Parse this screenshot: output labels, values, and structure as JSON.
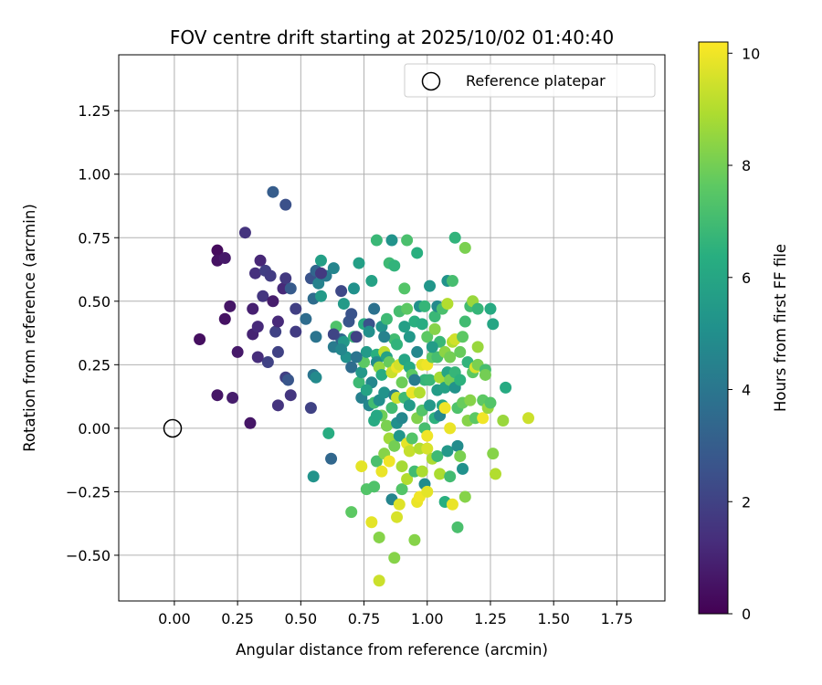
{
  "chart_data": {
    "type": "scatter",
    "title": "FOV centre drift starting at 2025/10/02 01:40:40",
    "xlabel": "Angular distance from reference (arcmin)",
    "ylabel": "Rotation from reference (arcmin)",
    "xlim": [
      -0.22,
      1.94
    ],
    "ylim": [
      -0.68,
      1.47
    ],
    "xticks": [
      "0.00",
      "0.25",
      "0.50",
      "0.75",
      "1.00",
      "1.25",
      "1.50",
      "1.75"
    ],
    "yticks": [
      "−0.50",
      "−0.25",
      "0.00",
      "0.25",
      "0.50",
      "0.75",
      "1.00",
      "1.25"
    ],
    "grid": true,
    "colormap": "viridis",
    "colorbar": {
      "label": "Hours from first FF file",
      "range": [
        0,
        10.2
      ],
      "ticks": [
        "0",
        "2",
        "4",
        "6",
        "8",
        "10"
      ]
    },
    "legend": {
      "position": "upper-right",
      "entries": [
        "Reference platepar"
      ]
    },
    "reference_point": {
      "x": 0.0,
      "y": 0.0
    },
    "points": [
      [
        0.1,
        0.35,
        0.4
      ],
      [
        0.17,
        0.7,
        0.3
      ],
      [
        0.17,
        0.66,
        0.5
      ],
      [
        0.2,
        0.67,
        0.7
      ],
      [
        0.17,
        0.13,
        0.6
      ],
      [
        0.2,
        0.43,
        0.5
      ],
      [
        0.22,
        0.48,
        0.6
      ],
      [
        0.23,
        0.12,
        0.8
      ],
      [
        0.25,
        0.3,
        0.7
      ],
      [
        0.28,
        0.77,
        1.5
      ],
      [
        0.3,
        0.02,
        0.6
      ],
      [
        0.31,
        0.37,
        1.0
      ],
      [
        0.31,
        0.47,
        0.9
      ],
      [
        0.32,
        0.61,
        1.4
      ],
      [
        0.33,
        0.28,
        1.3
      ],
      [
        0.33,
        0.4,
        1.2
      ],
      [
        0.34,
        0.66,
        1.1
      ],
      [
        0.35,
        0.52,
        1.6
      ],
      [
        0.36,
        0.62,
        1.9
      ],
      [
        0.37,
        0.26,
        2.0
      ],
      [
        0.38,
        0.6,
        1.8
      ],
      [
        0.39,
        0.5,
        0.8
      ],
      [
        0.39,
        0.93,
        3.0
      ],
      [
        0.4,
        0.38,
        2.0
      ],
      [
        0.41,
        0.3,
        2.0
      ],
      [
        0.41,
        0.42,
        1.2
      ],
      [
        0.41,
        0.09,
        1.5
      ],
      [
        0.43,
        0.55,
        1.2
      ],
      [
        0.44,
        0.2,
        1.9
      ],
      [
        0.44,
        0.59,
        1.7
      ],
      [
        0.44,
        0.88,
        2.5
      ],
      [
        0.45,
        0.19,
        2.7
      ],
      [
        0.46,
        0.55,
        2.9
      ],
      [
        0.46,
        0.13,
        1.6
      ],
      [
        0.48,
        0.38,
        1.8
      ],
      [
        0.48,
        0.47,
        1.9
      ],
      [
        0.52,
        0.43,
        3.6
      ],
      [
        0.54,
        0.08,
        2.0
      ],
      [
        0.54,
        0.59,
        2.6
      ],
      [
        0.55,
        0.51,
        3.6
      ],
      [
        0.55,
        0.21,
        3.9
      ],
      [
        0.56,
        0.62,
        3.3
      ],
      [
        0.56,
        0.36,
        3.9
      ],
      [
        0.56,
        0.2,
        4.8
      ],
      [
        0.55,
        -0.19,
        5.2
      ],
      [
        0.57,
        0.57,
        4.5
      ],
      [
        0.58,
        0.66,
        5.7
      ],
      [
        0.58,
        0.52,
        5.5
      ],
      [
        0.6,
        0.6,
        4.1
      ],
      [
        0.61,
        -0.02,
        6.3
      ],
      [
        0.62,
        -0.12,
        3.4
      ],
      [
        0.63,
        0.63,
        4.6
      ],
      [
        0.63,
        0.32,
        4.2
      ],
      [
        0.64,
        0.4,
        7.3
      ],
      [
        0.66,
        0.35,
        3.4
      ],
      [
        0.66,
        0.54,
        2.2
      ],
      [
        0.67,
        0.34,
        5.4
      ],
      [
        0.67,
        0.49,
        5.5
      ],
      [
        0.68,
        0.28,
        5.1
      ],
      [
        0.69,
        0.42,
        2.7
      ],
      [
        0.7,
        -0.33,
        7.6
      ],
      [
        0.7,
        0.45,
        2.6
      ],
      [
        0.7,
        0.24,
        3.6
      ],
      [
        0.71,
        0.55,
        5.1
      ],
      [
        0.71,
        0.36,
        6.8
      ],
      [
        0.72,
        0.36,
        2.0
      ],
      [
        0.73,
        0.18,
        6.9
      ],
      [
        0.73,
        0.65,
        5.7
      ],
      [
        0.74,
        0.22,
        5.4
      ],
      [
        0.74,
        -0.15,
        9.8
      ],
      [
        0.74,
        0.12,
        4.4
      ],
      [
        0.75,
        0.41,
        6.3
      ],
      [
        0.75,
        0.26,
        7.6
      ],
      [
        0.76,
        0.3,
        5.5
      ],
      [
        0.76,
        -0.24,
        7.4
      ],
      [
        0.77,
        0.41,
        2.6
      ],
      [
        0.77,
        0.09,
        4.7
      ],
      [
        0.77,
        0.38,
        5.0
      ],
      [
        0.78,
        0.58,
        5.8
      ],
      [
        0.78,
        -0.37,
        9.8
      ],
      [
        0.78,
        0.18,
        4.7
      ],
      [
        0.79,
        0.1,
        7.0
      ],
      [
        0.79,
        -0.23,
        7.3
      ],
      [
        0.79,
        0.47,
        3.8
      ],
      [
        0.79,
        0.03,
        6.2
      ],
      [
        0.8,
        0.74,
        6.8
      ],
      [
        0.8,
        0.29,
        6.4
      ],
      [
        0.8,
        0.26,
        4.9
      ],
      [
        0.8,
        -0.13,
        7.2
      ],
      [
        0.81,
        0.11,
        5.0
      ],
      [
        0.81,
        -0.43,
        8.3
      ],
      [
        0.81,
        -0.6,
        9.4
      ],
      [
        0.81,
        0.24,
        8.5
      ],
      [
        0.82,
        0.4,
        5.2
      ],
      [
        0.82,
        0.05,
        7.9
      ],
      [
        0.82,
        0.21,
        6.3
      ],
      [
        0.82,
        -0.17,
        9.9
      ],
      [
        0.83,
        0.3,
        9.2
      ],
      [
        0.83,
        -0.1,
        8.3
      ],
      [
        0.83,
        0.14,
        5.2
      ],
      [
        0.84,
        0.43,
        6.9
      ],
      [
        0.84,
        0.28,
        5.8
      ],
      [
        0.84,
        0.01,
        8.1
      ],
      [
        0.85,
        0.65,
        6.9
      ],
      [
        0.85,
        0.26,
        7.8
      ],
      [
        0.85,
        -0.04,
        8.7
      ],
      [
        0.85,
        -0.13,
        10.0
      ],
      [
        0.86,
        0.08,
        7.0
      ],
      [
        0.86,
        -0.28,
        4.6
      ],
      [
        0.86,
        0.22,
        9.4
      ],
      [
        0.86,
        0.74,
        5.2
      ],
      [
        0.87,
        0.64,
        6.6
      ],
      [
        0.87,
        0.35,
        7.0
      ],
      [
        0.87,
        -0.51,
        8.3
      ],
      [
        0.87,
        0.13,
        4.4
      ],
      [
        0.87,
        -0.07,
        8.0
      ],
      [
        0.88,
        0.24,
        9.9
      ],
      [
        0.88,
        -0.35,
        9.6
      ],
      [
        0.88,
        0.02,
        5.0
      ],
      [
        0.88,
        0.12,
        9.4
      ],
      [
        0.89,
        0.46,
        7.1
      ],
      [
        0.89,
        0.25,
        9.5
      ],
      [
        0.89,
        -0.3,
        9.7
      ],
      [
        0.89,
        -0.03,
        5.3
      ],
      [
        0.9,
        0.04,
        4.7
      ],
      [
        0.9,
        -0.15,
        8.8
      ],
      [
        0.9,
        0.18,
        7.9
      ],
      [
        0.9,
        -0.24,
        7.4
      ],
      [
        0.91,
        0.27,
        6.0
      ],
      [
        0.91,
        0.55,
        7.4
      ],
      [
        0.91,
        0.12,
        6.9
      ],
      [
        0.92,
        0.74,
        7.2
      ],
      [
        0.92,
        -0.2,
        9.0
      ],
      [
        0.92,
        -0.06,
        9.8
      ],
      [
        0.92,
        0.47,
        7.6
      ],
      [
        0.93,
        0.09,
        5.5
      ],
      [
        0.93,
        -0.09,
        9.3
      ],
      [
        0.93,
        0.24,
        6.2
      ],
      [
        0.93,
        0.36,
        5.4
      ],
      [
        0.94,
        0.21,
        7.6
      ],
      [
        0.94,
        0.14,
        9.9
      ],
      [
        0.94,
        -0.04,
        7.4
      ],
      [
        0.95,
        -0.17,
        7.0
      ],
      [
        0.95,
        0.42,
        6.4
      ],
      [
        0.95,
        -0.44,
        8.3
      ],
      [
        0.96,
        -0.29,
        9.9
      ],
      [
        0.96,
        0.69,
        6.4
      ],
      [
        0.96,
        0.3,
        4.7
      ],
      [
        0.96,
        0.04,
        8.2
      ],
      [
        0.97,
        0.14,
        9.0
      ],
      [
        0.97,
        -0.08,
        9.0
      ],
      [
        0.97,
        0.48,
        5.1
      ],
      [
        0.97,
        -0.27,
        10.0
      ],
      [
        0.98,
        0.25,
        9.8
      ],
      [
        0.98,
        0.07,
        7.4
      ],
      [
        0.98,
        -0.17,
        8.9
      ],
      [
        0.98,
        0.41,
        6.3
      ],
      [
        0.99,
        0.0,
        7.1
      ],
      [
        0.99,
        0.19,
        6.7
      ],
      [
        0.99,
        0.48,
        6.7
      ],
      [
        0.99,
        -0.22,
        4.9
      ],
      [
        1.0,
        0.25,
        10.0
      ],
      [
        1.0,
        -0.08,
        9.6
      ],
      [
        1.0,
        -0.03,
        10.0
      ],
      [
        1.0,
        0.36,
        7.6
      ],
      [
        1.0,
        -0.25,
        9.8
      ],
      [
        1.01,
        0.56,
        5.3
      ],
      [
        1.01,
        0.09,
        5.4
      ],
      [
        1.01,
        0.19,
        6.8
      ],
      [
        1.02,
        -0.12,
        8.9
      ],
      [
        1.02,
        0.28,
        7.6
      ],
      [
        1.03,
        0.39,
        8.3
      ],
      [
        1.03,
        0.44,
        6.8
      ],
      [
        1.03,
        0.04,
        6.5
      ],
      [
        1.04,
        0.48,
        4.8
      ],
      [
        1.04,
        -0.11,
        6.9
      ],
      [
        1.04,
        0.15,
        5.6
      ],
      [
        1.04,
        0.28,
        7.1
      ],
      [
        1.05,
        0.2,
        8.8
      ],
      [
        1.05,
        0.05,
        4.7
      ],
      [
        1.05,
        -0.18,
        8.9
      ],
      [
        1.05,
        0.34,
        6.8
      ],
      [
        1.06,
        0.47,
        7.2
      ],
      [
        1.06,
        0.09,
        6.0
      ],
      [
        1.07,
        0.3,
        8.4
      ],
      [
        1.07,
        -0.29,
        6.4
      ],
      [
        1.07,
        0.16,
        5.8
      ],
      [
        1.07,
        0.08,
        10.0
      ],
      [
        1.08,
        0.49,
        9.0
      ],
      [
        1.08,
        -0.09,
        5.4
      ],
      [
        1.08,
        0.22,
        6.0
      ],
      [
        1.08,
        0.58,
        5.2
      ],
      [
        1.09,
        0.0,
        9.9
      ],
      [
        1.09,
        0.19,
        8.0
      ],
      [
        1.09,
        -0.19,
        7.0
      ],
      [
        1.09,
        0.28,
        8.0
      ],
      [
        1.1,
        0.34,
        9.0
      ],
      [
        1.1,
        0.58,
        7.1
      ],
      [
        1.1,
        -0.3,
        9.9
      ],
      [
        1.11,
        0.22,
        6.7
      ],
      [
        1.11,
        0.75,
        6.6
      ],
      [
        1.11,
        0.16,
        5.2
      ],
      [
        1.11,
        0.35,
        9.5
      ],
      [
        1.12,
        -0.07,
        4.9
      ],
      [
        1.12,
        -0.39,
        7.2
      ],
      [
        1.12,
        0.08,
        7.3
      ],
      [
        1.13,
        0.3,
        7.8
      ],
      [
        1.13,
        0.19,
        6.5
      ],
      [
        1.13,
        -0.11,
        8.1
      ],
      [
        1.14,
        0.36,
        7.6
      ],
      [
        1.14,
        0.1,
        7.8
      ],
      [
        1.14,
        -0.16,
        5.1
      ],
      [
        1.15,
        0.42,
        7.0
      ],
      [
        1.15,
        -0.27,
        8.3
      ],
      [
        1.15,
        0.71,
        8.1
      ],
      [
        1.16,
        0.26,
        6.6
      ],
      [
        1.16,
        0.03,
        8.3
      ],
      [
        1.17,
        0.48,
        7.0
      ],
      [
        1.17,
        0.11,
        8.3
      ],
      [
        1.18,
        0.22,
        7.6
      ],
      [
        1.18,
        0.5,
        8.6
      ],
      [
        1.19,
        0.24,
        9.6
      ],
      [
        1.19,
        0.04,
        7.6
      ],
      [
        1.2,
        0.32,
        8.6
      ],
      [
        1.2,
        0.47,
        6.7
      ],
      [
        1.2,
        0.25,
        8.1
      ],
      [
        1.22,
        0.04,
        10.0
      ],
      [
        1.22,
        0.11,
        7.6
      ],
      [
        1.23,
        0.23,
        7.1
      ],
      [
        1.23,
        0.21,
        8.0
      ],
      [
        1.24,
        0.08,
        8.6
      ],
      [
        1.25,
        0.1,
        7.4
      ],
      [
        1.25,
        0.47,
        6.2
      ],
      [
        1.26,
        0.41,
        6.0
      ],
      [
        1.26,
        -0.1,
        8.3
      ],
      [
        1.27,
        -0.18,
        9.0
      ],
      [
        1.3,
        0.03,
        8.6
      ],
      [
        1.31,
        0.16,
        6.2
      ],
      [
        1.4,
        0.04,
        9.4
      ],
      [
        0.58,
        0.61,
        1.7
      ],
      [
        0.63,
        0.37,
        2.1
      ],
      [
        0.66,
        0.31,
        4.7
      ],
      [
        0.72,
        0.28,
        3.9
      ],
      [
        0.76,
        0.15,
        5.9
      ],
      [
        0.8,
        0.05,
        6.1
      ],
      [
        0.83,
        0.36,
        4.5
      ],
      [
        0.88,
        0.33,
        6.6
      ],
      [
        0.91,
        0.4,
        5.7
      ],
      [
        0.95,
        0.19,
        4.2
      ],
      [
        1.02,
        0.32,
        5.6
      ]
    ]
  }
}
